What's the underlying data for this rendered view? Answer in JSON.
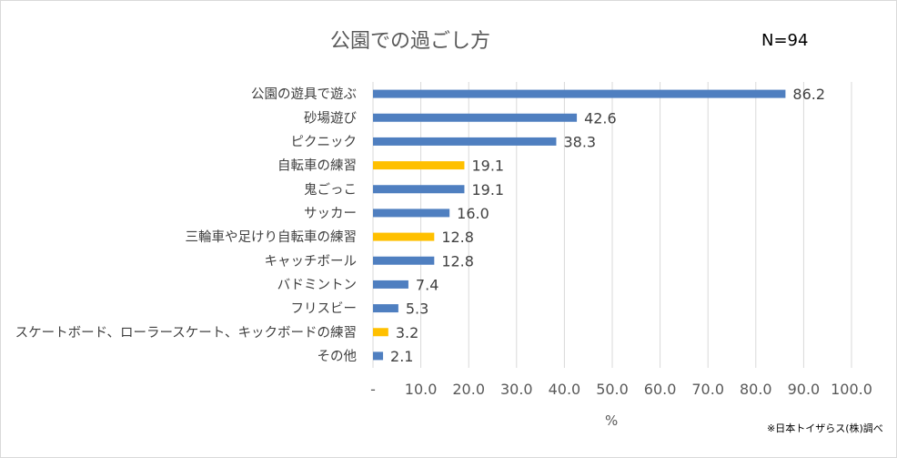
{
  "chart_data": {
    "type": "bar",
    "orientation": "horizontal",
    "title": "公園での過ごし方",
    "annotation": "N=94",
    "xlabel": "%",
    "ylabel": "",
    "source_note": "※日本トイザらス(株)調べ",
    "xlim": [
      0,
      100
    ],
    "x_ticks": [
      "-",
      "10.0",
      "20.0",
      "30.0",
      "40.0",
      "50.0",
      "60.0",
      "70.0",
      "80.0",
      "90.0",
      "100.0"
    ],
    "grid": true,
    "categories": [
      "公園の遊具で遊ぶ",
      "砂場遊び",
      "ピクニック",
      "自転車の練習",
      "鬼ごっこ",
      "サッカー",
      "三輪車や足けり自転車の練習",
      "キャッチボール",
      "バドミントン",
      "フリスビー",
      "スケートボード、ローラースケート、キックボードの練習",
      "その他"
    ],
    "values": [
      86.2,
      42.6,
      38.3,
      19.1,
      19.1,
      16.0,
      12.8,
      12.8,
      7.4,
      5.3,
      3.2,
      2.1
    ],
    "value_labels": [
      "86.2",
      "42.6",
      "38.3",
      "19.1",
      "19.1",
      "16.0",
      "12.8",
      "12.8",
      "7.4",
      "5.3",
      "3.2",
      "2.1"
    ],
    "highlighted": [
      false,
      false,
      false,
      true,
      false,
      false,
      true,
      false,
      false,
      false,
      true,
      false
    ],
    "colors": {
      "bar": "#4f7fc0",
      "highlight": "#ffc000",
      "grid": "#d9d9d9",
      "text": "#404040"
    }
  }
}
